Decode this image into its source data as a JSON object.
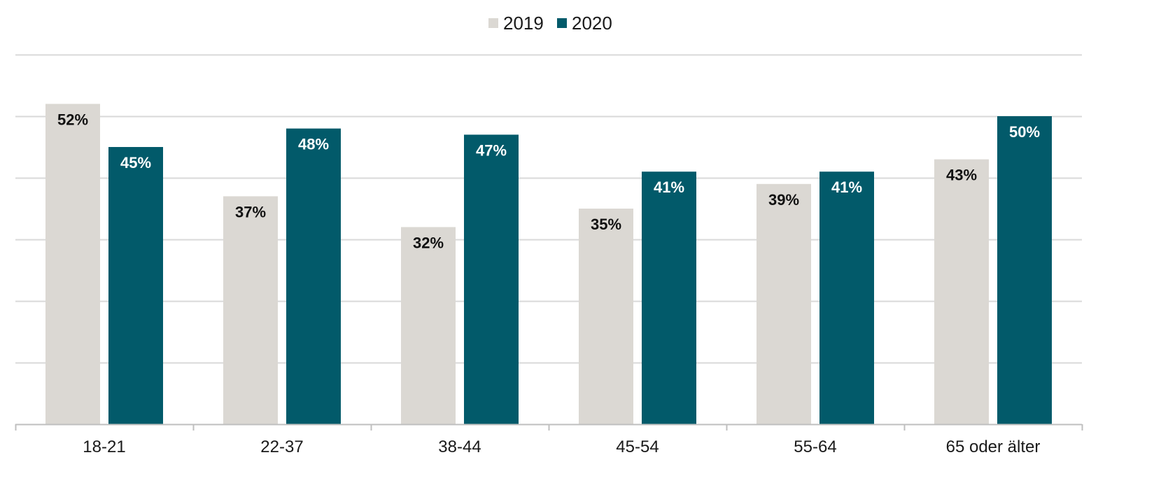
{
  "chart_data": {
    "type": "bar",
    "categories": [
      "18-21",
      "22-37",
      "38-44",
      "45-54",
      "55-64",
      "65 oder älter"
    ],
    "series": [
      {
        "name": "2019",
        "values": [
          52,
          37,
          32,
          35,
          39,
          43
        ],
        "labels": [
          "52%",
          "37%",
          "32%",
          "35%",
          "39%",
          "43%"
        ],
        "color": "#dbd8d3",
        "label_color": "#111111"
      },
      {
        "name": "2020",
        "values": [
          45,
          48,
          47,
          41,
          41,
          50
        ],
        "labels": [
          "45%",
          "48%",
          "47%",
          "41%",
          "41%",
          "50%"
        ],
        "color": "#025a6a",
        "label_color": "#ffffff"
      }
    ],
    "ylim": [
      0,
      60
    ],
    "grid": true,
    "legend_position": "top-center",
    "title": "",
    "xlabel": "",
    "ylabel": ""
  }
}
